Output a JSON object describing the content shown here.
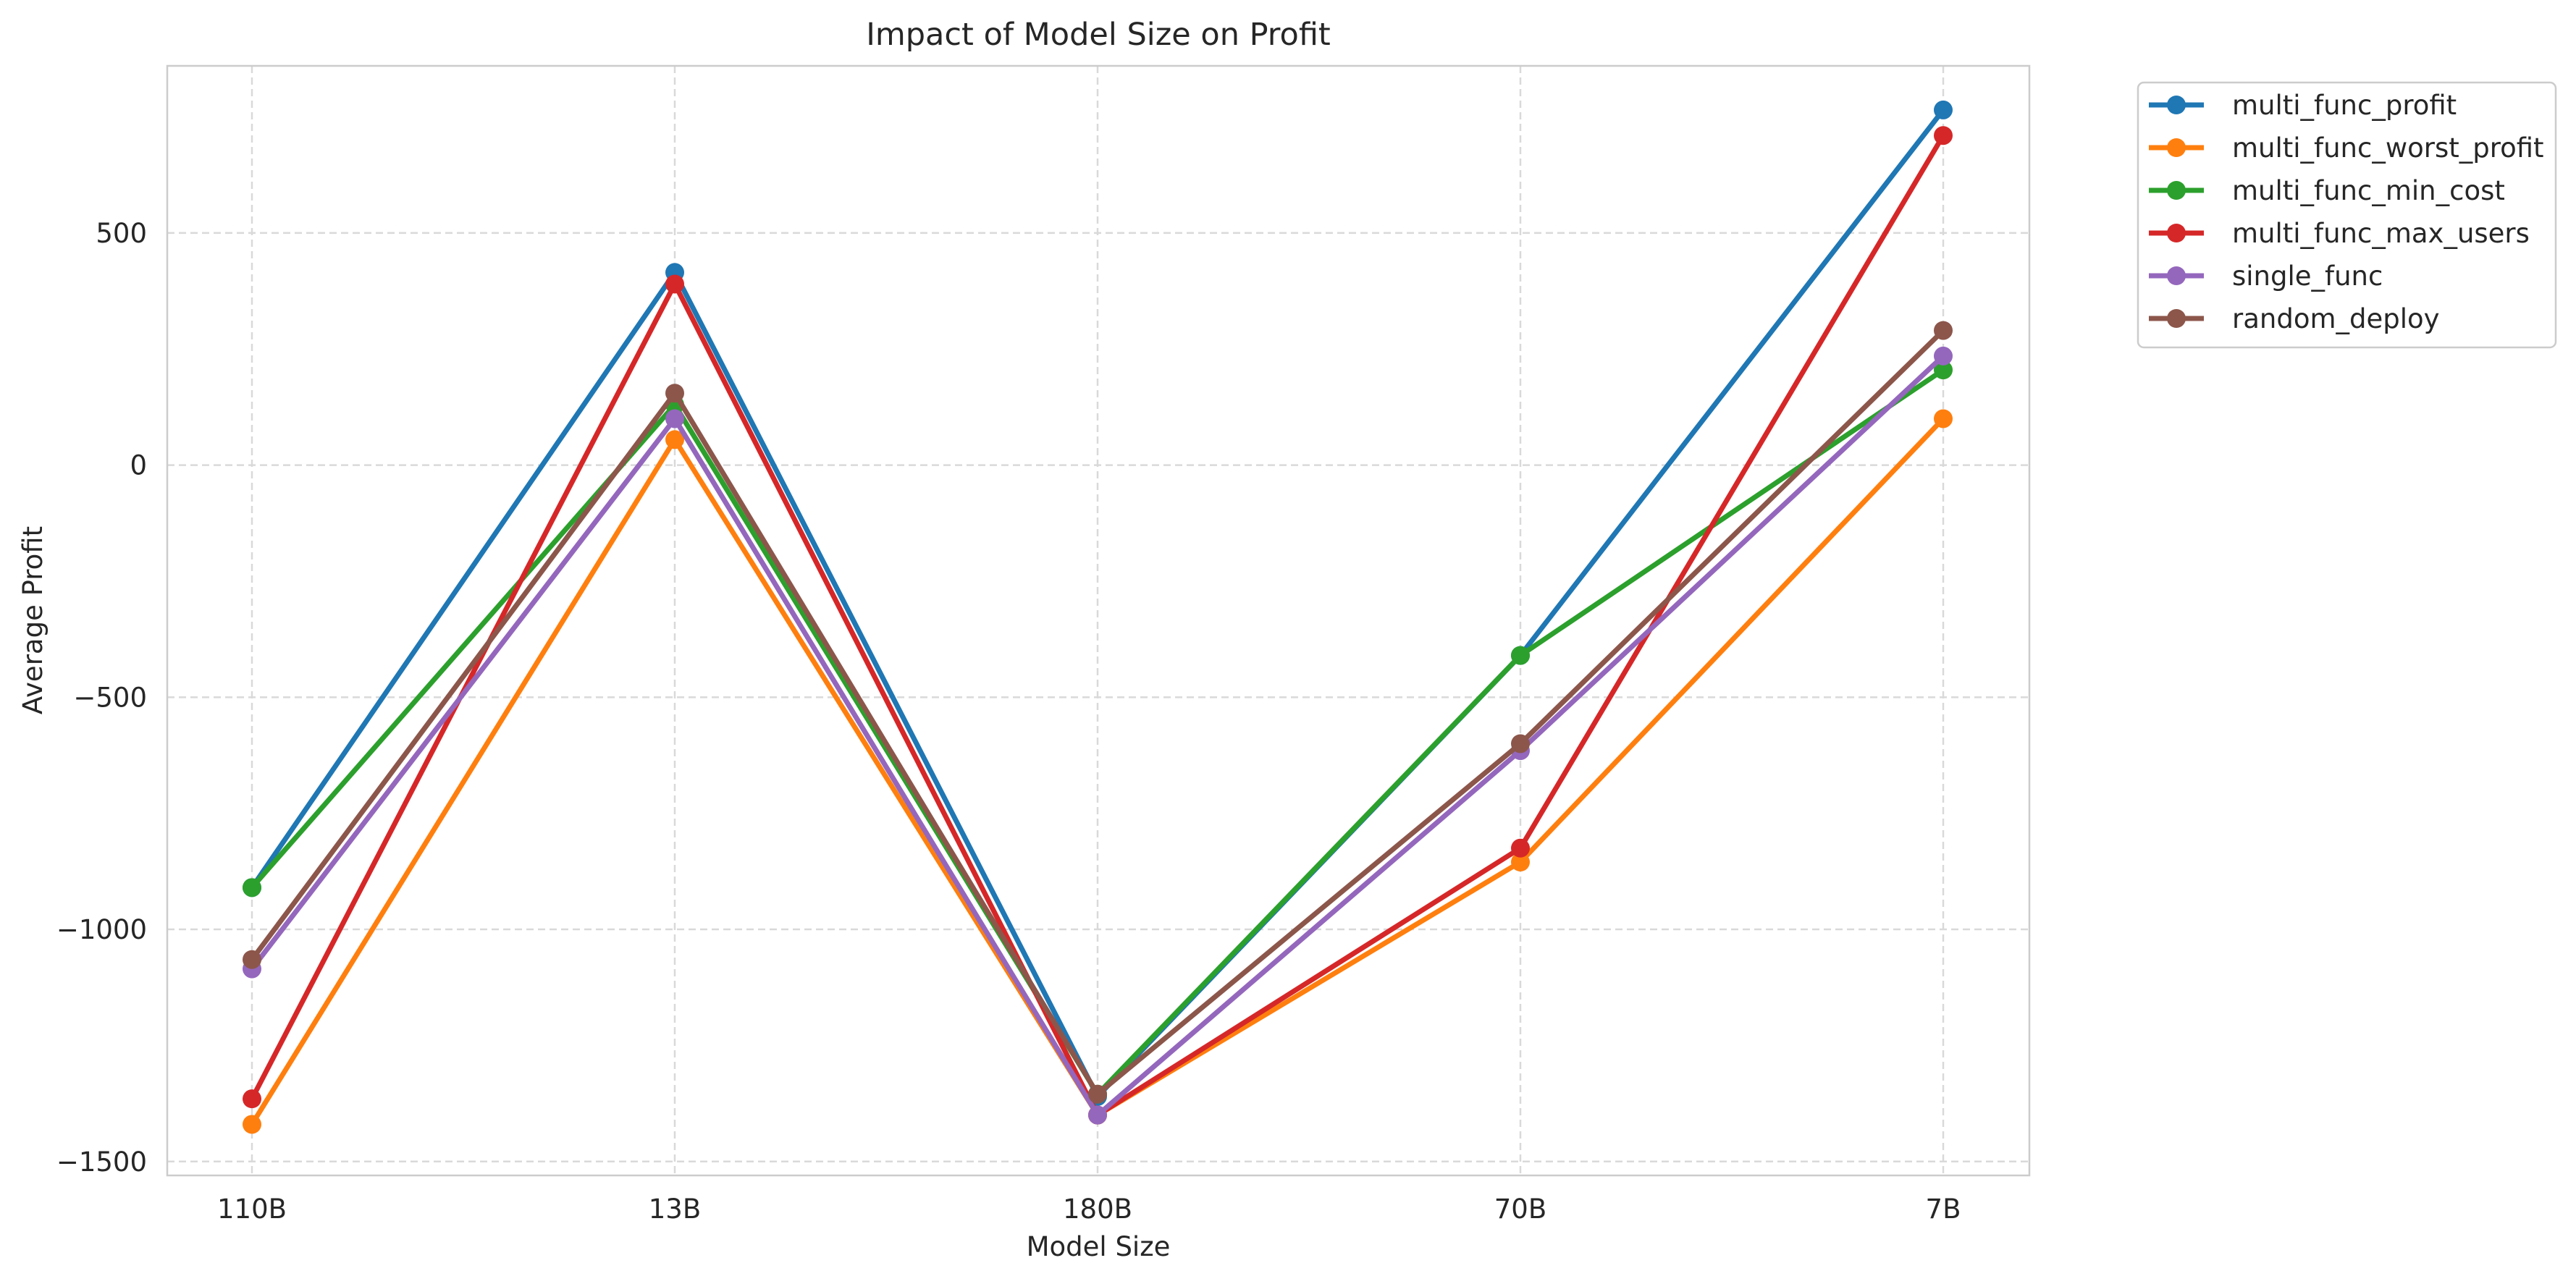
{
  "chart_data": {
    "type": "line",
    "title": "Impact of Model Size on Profit",
    "xlabel": "Model Size",
    "ylabel": "Average Profit",
    "categories": [
      "110B",
      "13B",
      "180B",
      "70B",
      "7B"
    ],
    "ylim": [
      -1530,
      860
    ],
    "yticks": [
      500,
      0,
      -500,
      -1000,
      -1500
    ],
    "ytick_labels": [
      "500",
      "0",
      "−500",
      "−1000",
      "−1500"
    ],
    "grid": true,
    "legend_position": "outside-top-right",
    "series": [
      {
        "name": "multi_func_profit",
        "color": "#1f77b4",
        "values": [
          -910,
          415,
          -1360,
          -410,
          765
        ]
      },
      {
        "name": "multi_func_worst_profit",
        "color": "#ff7f0e",
        "values": [
          -1420,
          55,
          -1400,
          -855,
          100
        ]
      },
      {
        "name": "multi_func_min_cost",
        "color": "#2ca02c",
        "values": [
          -910,
          130,
          -1355,
          -410,
          205
        ]
      },
      {
        "name": "multi_func_max_users",
        "color": "#d62728",
        "values": [
          -1365,
          390,
          -1400,
          -825,
          710
        ]
      },
      {
        "name": "single_func",
        "color": "#9467bd",
        "values": [
          -1085,
          100,
          -1400,
          -615,
          235
        ]
      },
      {
        "name": "random_deploy",
        "color": "#8c564b",
        "values": [
          -1065,
          155,
          -1355,
          -600,
          290
        ]
      }
    ]
  }
}
